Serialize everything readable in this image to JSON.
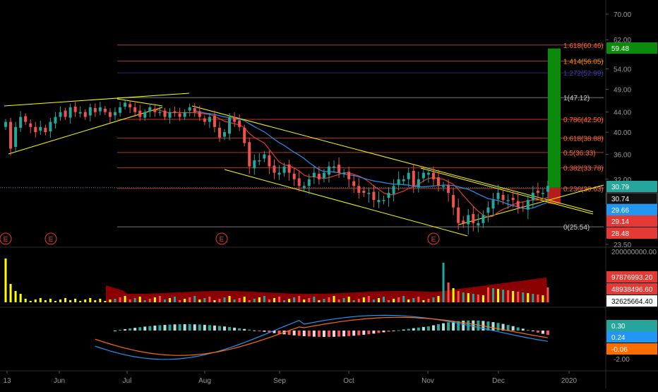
{
  "colors": {
    "background": "#000000",
    "up": "#26a69a",
    "down": "#ef5350",
    "fib": "#b33a1e",
    "trendline": "#ffff00",
    "ma_fast": "#e53935",
    "ma_slow": "#2196f3",
    "macd_line": "#2196f3",
    "signal_line": "#ff6d00",
    "target_zone": "#0b8a0b",
    "stop_zone": "#b71c1c",
    "volume": "#ffff00",
    "volume_area": "#8b0000"
  },
  "chart_data": [
    {
      "type": "candlestick",
      "panel": "price",
      "xlabels": [
        "13",
        "Jun",
        "Jul",
        "Aug",
        "Sep",
        "Oct",
        "Nov",
        "Dec",
        "2020"
      ],
      "yticks": [
        "70.00",
        "62.00",
        "54.00",
        "49.00",
        "44.00",
        "40.00",
        "36.00",
        "32.00",
        "23.50"
      ],
      "ylim": [
        23.5,
        70
      ],
      "scale": "log",
      "fib_levels": [
        {
          "label": "1.618(60.46)",
          "value": 60.46
        },
        {
          "label": "1.414(56.05)",
          "value": 56.05
        },
        {
          "label": "1.272(52.99)",
          "value": 52.99
        },
        {
          "label": "1(47.12)",
          "value": 47.12
        },
        {
          "label": "0.786(42.50)",
          "value": 42.5
        },
        {
          "label": "0.618(38.88)",
          "value": 38.88
        },
        {
          "label": "0.5(36.33)",
          "value": 36.33
        },
        {
          "label": "0.382(33.78)",
          "value": 33.78
        },
        {
          "label": "0.236(30.63)",
          "value": 30.63
        },
        {
          "label": "0(25.54)",
          "value": 25.54
        }
      ],
      "price_tags": [
        {
          "value": "59.48",
          "color": "#0b8a0b"
        },
        {
          "value": "30.79",
          "color": "#26a69a"
        },
        {
          "value": "30.74",
          "color": "#111111"
        },
        {
          "value": "29.66",
          "color": "#2196f3"
        },
        {
          "value": "29.14",
          "color": "#e53935"
        },
        {
          "value": "28.48",
          "color": "#e53935"
        }
      ],
      "earnings_markers": [
        {
          "label": "E",
          "date": "May 13"
        },
        {
          "label": "E",
          "date": "May 28"
        },
        {
          "label": "E",
          "date": "Aug 8"
        },
        {
          "label": "E",
          "date": "Nov 1"
        }
      ],
      "series": [
        {
          "ohlc_close_approx": [
            42,
            37,
            41,
            43,
            42,
            41,
            40,
            41,
            40,
            42,
            43,
            44,
            43,
            45,
            44,
            44,
            43,
            45,
            44,
            45,
            44,
            43,
            44,
            45,
            46,
            45,
            44,
            43,
            44,
            45,
            44,
            44,
            43,
            44,
            44,
            43,
            44,
            45,
            44,
            43,
            42,
            43,
            41,
            39,
            40,
            43,
            42,
            41,
            38,
            34,
            35,
            35,
            36,
            34,
            33,
            33,
            34,
            33,
            32,
            31,
            31,
            32,
            33,
            32,
            33,
            34,
            34,
            33,
            33,
            32,
            31,
            30,
            30,
            30,
            29,
            29,
            29,
            30,
            31,
            32,
            32,
            33,
            31,
            32,
            33,
            33,
            32,
            31,
            31,
            30,
            28,
            26,
            26,
            27,
            26,
            26,
            27,
            28,
            29,
            30,
            29,
            29,
            29,
            28,
            28,
            29,
            30,
            30,
            30,
            31
          ]
        }
      ]
    },
    {
      "type": "bar",
      "panel": "volume",
      "yticks": [
        "200000000.00"
      ],
      "value_tags": [
        {
          "value": "97876993.20",
          "color": "#e53935"
        },
        {
          "value": "48938496.60",
          "color": "#e53935"
        },
        {
          "value": "32625664.40",
          "color": "#ffffff"
        }
      ]
    },
    {
      "type": "histogram",
      "panel": "macd",
      "yticks": [
        "-2.00"
      ],
      "value_tags": [
        {
          "value": "0.30",
          "color": "#26a69a"
        },
        {
          "value": "0.24",
          "color": "#2196f3"
        },
        {
          "value": "-0.06",
          "color": "#ff6d00"
        }
      ]
    }
  ]
}
